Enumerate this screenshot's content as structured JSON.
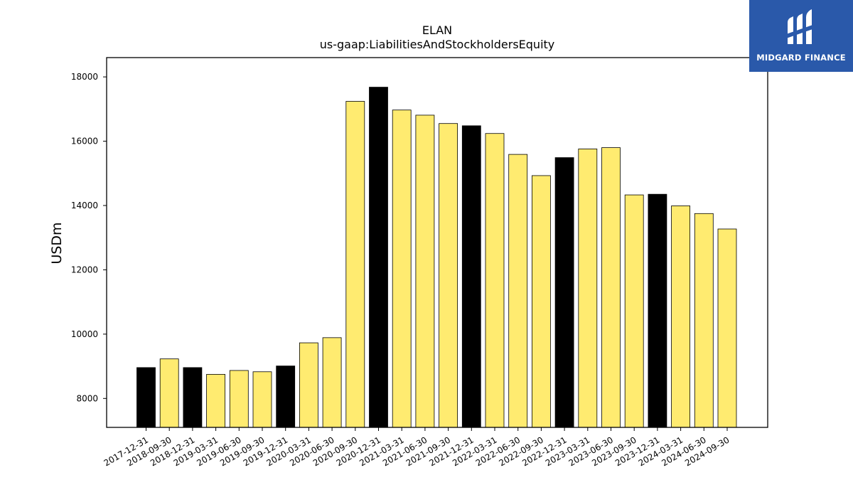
{
  "chart_data": {
    "type": "bar",
    "title": "ELAN",
    "subtitle": "us-gaap:LiabilitiesAndStockholdersEquity",
    "xlabel": "",
    "ylabel": "USDm",
    "ylim": [
      7100,
      18600
    ],
    "yticks": [
      8000,
      10000,
      12000,
      14000,
      16000,
      18000
    ],
    "grid": false,
    "categories": [
      "2017-12-31",
      "2018-09-30",
      "2018-12-31",
      "2019-03-31",
      "2019-06-30",
      "2019-09-30",
      "2019-12-31",
      "2020-03-31",
      "2020-06-30",
      "2020-09-30",
      "2020-12-31",
      "2021-03-31",
      "2021-06-30",
      "2021-09-30",
      "2021-12-31",
      "2022-03-31",
      "2022-06-30",
      "2022-09-30",
      "2022-12-31",
      "2023-03-31",
      "2023-06-30",
      "2023-09-30",
      "2023-12-31",
      "2024-03-31",
      "2024-06-30",
      "2024-09-30"
    ],
    "values": [
      8960,
      9230,
      8960,
      8750,
      8870,
      8830,
      9010,
      9730,
      9890,
      17240,
      17680,
      16970,
      16810,
      16550,
      16480,
      16240,
      15590,
      14930,
      15490,
      15760,
      15800,
      14330,
      14350,
      13990,
      13750,
      13270
    ],
    "bar_colors": [
      "#000000",
      "#ffeb70",
      "#000000",
      "#ffeb70",
      "#ffeb70",
      "#ffeb70",
      "#000000",
      "#ffeb70",
      "#ffeb70",
      "#ffeb70",
      "#000000",
      "#ffeb70",
      "#ffeb70",
      "#ffeb70",
      "#000000",
      "#ffeb70",
      "#ffeb70",
      "#ffeb70",
      "#000000",
      "#ffeb70",
      "#ffeb70",
      "#ffeb70",
      "#000000",
      "#ffeb70",
      "#ffeb70",
      "#ffeb70"
    ]
  },
  "logo": {
    "text": "MIDGARD FINANCE",
    "background": "#2a59aa",
    "icon": "midgard-logo-icon"
  }
}
